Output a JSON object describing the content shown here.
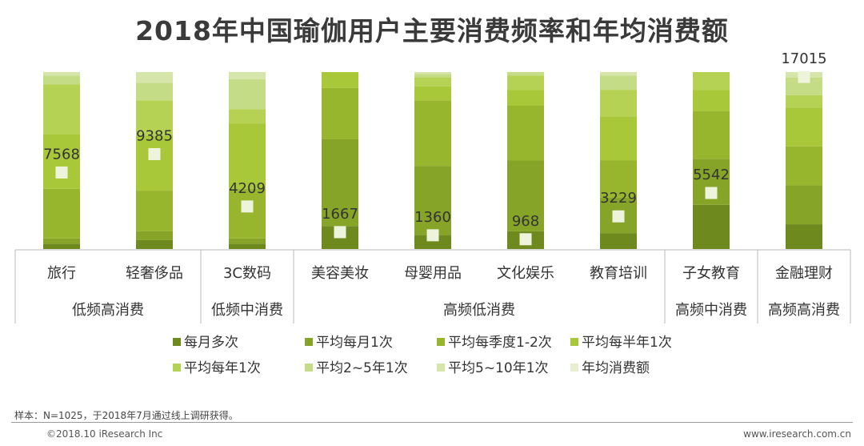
{
  "title": "2018年中国瑜伽用户主要消费频率和年均消费额",
  "footer": {
    "sample_note": "样本：N=1025，于2018年7月通过线上调研获得。",
    "copyright": "©2018.10 iResearch Inc",
    "website": "www.iresearch.com.cn"
  },
  "chart_data": {
    "type": "bar",
    "stacked": true,
    "stack_max": 100,
    "categories": [
      "旅行",
      "轻奢侈品",
      "3C数码",
      "美容美妆",
      "母婴用品",
      "文化娱乐",
      "教育培训",
      "子女教育",
      "金融理财"
    ],
    "groups": [
      {
        "label": "低频高消费",
        "categories": [
          "旅行",
          "轻奢侈品"
        ]
      },
      {
        "label": "低频中消费",
        "categories": [
          "3C数码"
        ]
      },
      {
        "label": "高频低消费",
        "categories": [
          "美容美妆",
          "母婴用品",
          "文化娱乐",
          "教育培训"
        ]
      },
      {
        "label": "高频中消费",
        "categories": [
          "子女教育"
        ]
      },
      {
        "label": "高频高消费",
        "categories": [
          "金融理财"
        ]
      }
    ],
    "series": [
      {
        "name": "每月多次",
        "color": "#6e8a1f",
        "values": [
          3,
          5,
          3,
          13,
          8,
          10,
          9,
          25,
          14
        ]
      },
      {
        "name": "平均每月1次",
        "color": "#86a428",
        "values": [
          3,
          5,
          3,
          49,
          39,
          40,
          20,
          26,
          22
        ]
      },
      {
        "name": "平均每季度1-2次",
        "color": "#98b52e",
        "values": [
          28,
          23,
          28,
          29,
          37,
          31,
          21,
          27,
          22
        ]
      },
      {
        "name": "平均每半年1次",
        "color": "#a8c83a",
        "values": [
          31,
          31,
          37,
          9,
          8,
          9,
          25,
          12,
          22
        ]
      },
      {
        "name": "平均每年1次",
        "color": "#b5d255",
        "values": [
          28,
          20,
          8,
          0,
          5,
          8,
          15,
          10,
          7
        ]
      },
      {
        "name": "平均2~5年1次",
        "color": "#c5dc86",
        "values": [
          5,
          10,
          17,
          0,
          2,
          2,
          8,
          0,
          10
        ]
      },
      {
        "name": "平均5~10年1次",
        "color": "#d6e6ab",
        "values": [
          2,
          6,
          4,
          0,
          1,
          0,
          2,
          0,
          3
        ]
      }
    ],
    "annual_spend": {
      "name": "年均消费额",
      "color": "#e7efd0",
      "values": [
        7568,
        9385,
        4209,
        1667,
        1360,
        968,
        3229,
        5542,
        17015
      ],
      "ylim": [
        0,
        17500
      ]
    }
  }
}
